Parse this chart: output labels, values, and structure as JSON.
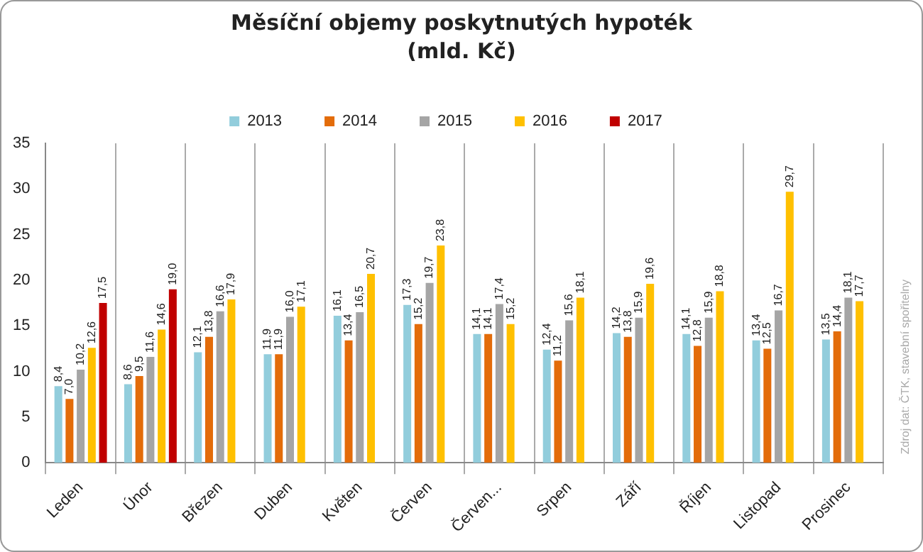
{
  "chart_data": {
    "type": "bar",
    "title": "Měsíční objemy poskytnutých hypoték",
    "subtitle": "(mld. Kč)",
    "categories": [
      "Leden",
      "Únor",
      "Březen",
      "Duben",
      "Květen",
      "Červen",
      "Červen...",
      "Srpen",
      "Září",
      "Říjen",
      "Listopad",
      "Prosinec"
    ],
    "series": [
      {
        "name": "2013",
        "color": "#92cddc",
        "values": [
          8.4,
          8.6,
          12.1,
          11.9,
          16.1,
          17.3,
          14.1,
          12.4,
          14.2,
          14.1,
          13.4,
          13.5
        ],
        "value_labels": [
          "8,4",
          "8,6",
          "12,1",
          "11,9",
          "16,1",
          "17,3",
          "14,1",
          "12,4",
          "14,2",
          "14,1",
          "13,4",
          "13,5"
        ]
      },
      {
        "name": "2014",
        "color": "#e36c0a",
        "values": [
          7.0,
          9.5,
          13.8,
          11.9,
          13.4,
          15.2,
          14.1,
          11.2,
          13.8,
          12.8,
          12.5,
          14.4
        ],
        "value_labels": [
          "7,0",
          "9,5",
          "13,8",
          "11,9",
          "13,4",
          "15,2",
          "14,1",
          "11,2",
          "13,8",
          "12,8",
          "12,5",
          "14,4"
        ]
      },
      {
        "name": "2015",
        "color": "#a5a5a5",
        "values": [
          10.2,
          11.6,
          16.6,
          16.0,
          16.5,
          19.7,
          17.4,
          15.6,
          15.9,
          15.9,
          16.7,
          18.1
        ],
        "value_labels": [
          "10,2",
          "11,6",
          "16,6",
          "16,0",
          "16,5",
          "19,7",
          "17,4",
          "15,6",
          "15,9",
          "15,9",
          "16,7",
          "18,1"
        ]
      },
      {
        "name": "2016",
        "color": "#ffc000",
        "values": [
          12.6,
          14.6,
          17.9,
          17.1,
          20.7,
          23.8,
          15.2,
          18.1,
          19.6,
          18.8,
          29.7,
          17.7
        ],
        "value_labels": [
          "12,6",
          "14,6",
          "17,9",
          "17,1",
          "20,7",
          "23,8",
          "15,2",
          "18,1",
          "19,6",
          "18,8",
          "29,7",
          "17,7"
        ]
      },
      {
        "name": "2017",
        "color": "#c00000",
        "values": [
          17.5,
          19.0,
          null,
          null,
          null,
          null,
          null,
          null,
          null,
          null,
          null,
          null
        ],
        "value_labels": [
          "17,5",
          "19,0",
          null,
          null,
          null,
          null,
          null,
          null,
          null,
          null,
          null,
          null
        ]
      }
    ],
    "ylim": [
      0,
      35
    ],
    "yticks": [
      0,
      5,
      10,
      15,
      20,
      25,
      30,
      35
    ],
    "grid": "x",
    "legend": "top",
    "annotations": [
      "Zdroj dat: ČTK, stavební spořitelny"
    ]
  }
}
